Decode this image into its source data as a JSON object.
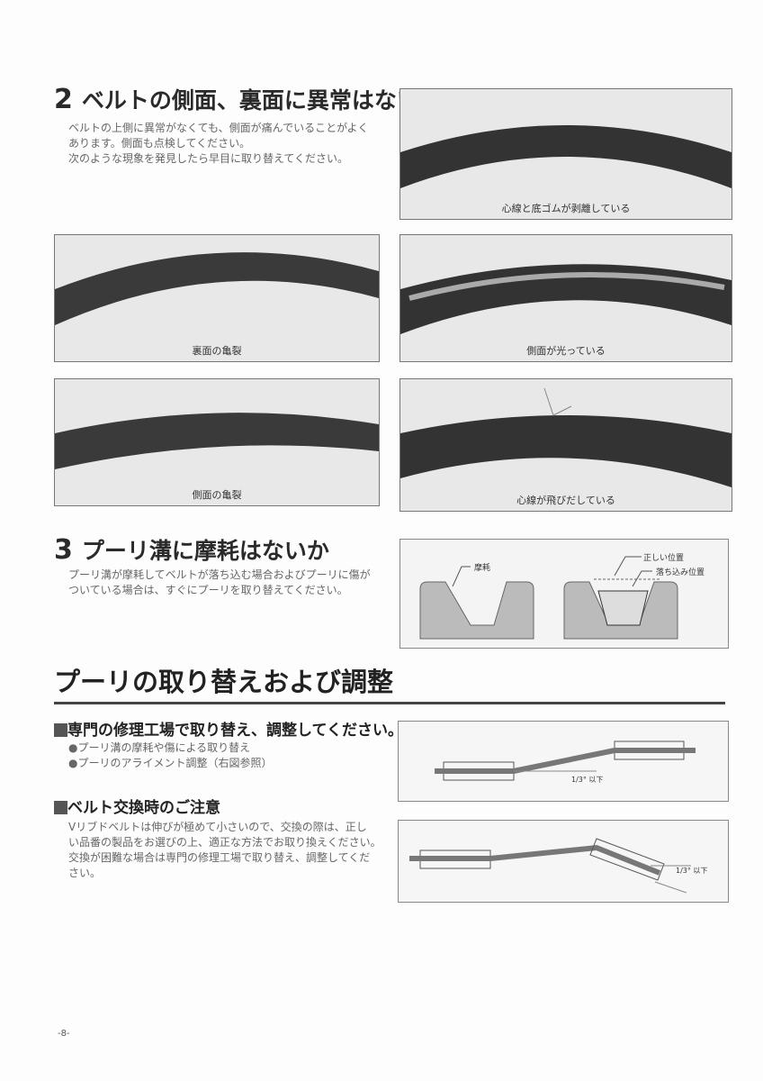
{
  "section2": {
    "number": "2",
    "title": "ベルトの側面、裏面に異常はないか",
    "lines": [
      "ベルトの上側に異常がなくても、側面が痛んでいることがよく",
      "あります。側面も点検してください。",
      "次のような現象を発見したら早目に取り替えてください。"
    ]
  },
  "photos": {
    "p1": "心線と底ゴムが剥離している",
    "p2": "裏面の亀裂",
    "p3": "側面が光っている",
    "p4": "側面の亀裂",
    "p5": "心線が飛びだしている"
  },
  "section3": {
    "number": "3",
    "title": "プーリ溝に摩耗はないか",
    "lines": [
      "プーリ溝が摩耗してベルトが落ち込む場合およびプーリに傷が",
      "ついている場合は、すぐにプーリを取り替えてください。"
    ]
  },
  "groove_diagram": {
    "wear": "摩耗",
    "correct": "正しい位置",
    "sunk": "落ち込み位置"
  },
  "main_heading": "プーリの取り替えおよび調整",
  "sub1": {
    "title": "専門の修理工場で取り替え、調整してください。",
    "bullets": [
      "●プーリ溝の摩耗や傷による取り替え",
      "●プーリのアライメント調整（右図参照）"
    ]
  },
  "sub2": {
    "title": "ベルト交換時のご注意",
    "lines": [
      "Vリブドベルトは伸びが極めて小さいので、交換の際は、正し",
      "い品番の製品をお選びの上、適正な方法でお取り換えください。",
      "交換が困難な場合は専門の修理工場で取り替え、調整してくだ",
      "さい。"
    ]
  },
  "alignment": {
    "angle1": "1/3° 以下",
    "angle2": "1/3° 以下"
  },
  "page_number": "-8-"
}
